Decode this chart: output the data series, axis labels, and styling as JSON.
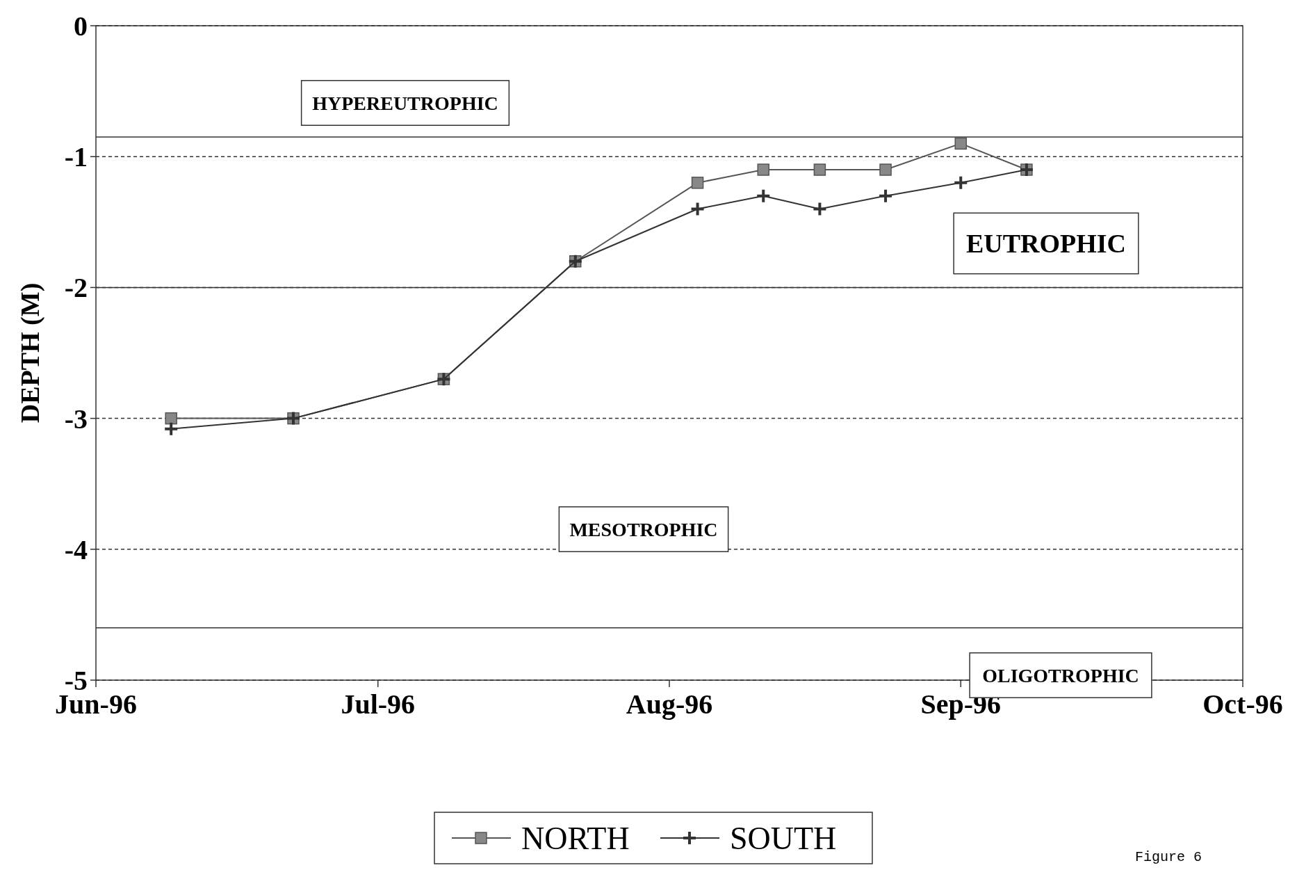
{
  "chart_data": {
    "type": "line",
    "ylabel": "DEPTH (M)",
    "xlim": [
      "1996-06-01",
      "1996-10-01"
    ],
    "xticks": [
      {
        "value": "1996-06-01",
        "label": "Jun-96"
      },
      {
        "value": "1996-07-01",
        "label": "Jul-96"
      },
      {
        "value": "1996-08-01",
        "label": "Aug-96"
      },
      {
        "value": "1996-09-01",
        "label": "Sep-96"
      },
      {
        "value": "1996-10-01",
        "label": "Oct-96"
      }
    ],
    "ylim": [
      -5,
      0
    ],
    "yticks": [
      0,
      -1,
      -2,
      -3,
      -4,
      -5
    ],
    "grid": "y",
    "legend": "bottom",
    "x": [
      "1996-06-09",
      "1996-06-22",
      "1996-07-08",
      "1996-07-22",
      "1996-08-04",
      "1996-08-11",
      "1996-08-17",
      "1996-08-24",
      "1996-09-01",
      "1996-09-08"
    ],
    "series": [
      {
        "name": "NORTH",
        "color": "#555555",
        "marker": "square",
        "values": [
          -3.0,
          -3.0,
          -2.7,
          -1.8,
          -1.2,
          -1.1,
          -1.1,
          -1.1,
          -0.9,
          -1.1
        ]
      },
      {
        "name": "SOUTH",
        "color": "#333333",
        "marker": "cross",
        "values": [
          -3.08,
          -3.0,
          -2.7,
          -1.8,
          -1.4,
          -1.3,
          -1.4,
          -1.3,
          -1.2,
          -1.1
        ]
      }
    ],
    "ref_lines": [
      {
        "axis": "y",
        "value": -0.85,
        "label": null,
        "line_style": "solid",
        "color": "#333333"
      },
      {
        "axis": "y",
        "value": -2,
        "label": null,
        "line_style": "solid",
        "color": "#333333"
      },
      {
        "axis": "y",
        "value": -4.6,
        "label": null,
        "line_style": "solid",
        "color": "#333333"
      }
    ],
    "annotations": [
      "HYPEREUTROPHIC",
      "EUTROPHIC",
      "MESOTROPHIC",
      "OLIGOTROPHIC",
      "Figure 6"
    ]
  }
}
